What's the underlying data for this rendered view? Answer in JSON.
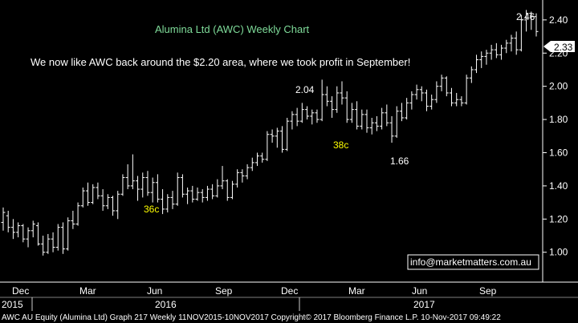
{
  "chart_data": {
    "type": "ohlc",
    "title": "Alumina Ltd (AWC) Weekly Chart",
    "commentary": "We now like AWC back around the $2.20 area, where we took profit in September!",
    "ylim": [
      0.82,
      2.52
    ],
    "y_ticks": [
      1.0,
      1.2,
      1.4,
      1.6,
      1.8,
      2.0,
      2.2,
      2.4
    ],
    "y_tick_labels": [
      "1.00",
      "1.20",
      "1.40",
      "1.60",
      "1.80",
      "2.00",
      "2.20",
      "2.40"
    ],
    "last_price": 2.33,
    "last_price_label": "2.33",
    "x_month_labels": [
      "Dec",
      "Mar",
      "Jun",
      "Sep",
      "Dec",
      "Mar",
      "Jun",
      "Sep"
    ],
    "x_year_labels": [
      "2015",
      "2016",
      "2017"
    ],
    "annotations": [
      {
        "text": "2.46",
        "color": "#ffffff"
      },
      {
        "text": "2.04",
        "color": "#ffffff"
      },
      {
        "text": "38c",
        "color": "#ffff00"
      },
      {
        "text": "1.66",
        "color": "#ffffff"
      },
      {
        "text": "36c",
        "color": "#ffff00"
      }
    ],
    "bars": [
      {
        "o": 1.18,
        "h": 1.27,
        "l": 1.13,
        "c": 1.24
      },
      {
        "o": 1.22,
        "h": 1.25,
        "l": 1.12,
        "c": 1.15
      },
      {
        "o": 1.15,
        "h": 1.2,
        "l": 1.08,
        "c": 1.12
      },
      {
        "o": 1.12,
        "h": 1.18,
        "l": 1.09,
        "c": 1.16
      },
      {
        "o": 1.16,
        "h": 1.17,
        "l": 1.06,
        "c": 1.08
      },
      {
        "o": 1.08,
        "h": 1.15,
        "l": 1.03,
        "c": 1.13
      },
      {
        "o": 1.13,
        "h": 1.19,
        "l": 1.09,
        "c": 1.17
      },
      {
        "o": 1.16,
        "h": 1.18,
        "l": 1.04,
        "c": 1.05
      },
      {
        "o": 1.05,
        "h": 1.1,
        "l": 0.98,
        "c": 1.0
      },
      {
        "o": 1.0,
        "h": 1.11,
        "l": 0.99,
        "c": 1.08
      },
      {
        "o": 1.08,
        "h": 1.12,
        "l": 1.0,
        "c": 1.03
      },
      {
        "o": 1.03,
        "h": 1.17,
        "l": 1.01,
        "c": 1.15
      },
      {
        "o": 1.15,
        "h": 1.18,
        "l": 0.99,
        "c": 1.02
      },
      {
        "o": 1.02,
        "h": 1.21,
        "l": 1.01,
        "c": 1.19
      },
      {
        "o": 1.19,
        "h": 1.25,
        "l": 1.14,
        "c": 1.17
      },
      {
        "o": 1.17,
        "h": 1.3,
        "l": 1.16,
        "c": 1.28
      },
      {
        "o": 1.28,
        "h": 1.39,
        "l": 1.27,
        "c": 1.37
      },
      {
        "o": 1.37,
        "h": 1.42,
        "l": 1.28,
        "c": 1.3
      },
      {
        "o": 1.3,
        "h": 1.41,
        "l": 1.29,
        "c": 1.39
      },
      {
        "o": 1.39,
        "h": 1.42,
        "l": 1.32,
        "c": 1.34
      },
      {
        "o": 1.34,
        "h": 1.38,
        "l": 1.25,
        "c": 1.28
      },
      {
        "o": 1.28,
        "h": 1.35,
        "l": 1.26,
        "c": 1.33
      },
      {
        "o": 1.33,
        "h": 1.34,
        "l": 1.22,
        "c": 1.25
      },
      {
        "o": 1.25,
        "h": 1.37,
        "l": 1.2,
        "c": 1.35
      },
      {
        "o": 1.35,
        "h": 1.47,
        "l": 1.34,
        "c": 1.45
      },
      {
        "o": 1.45,
        "h": 1.53,
        "l": 1.38,
        "c": 1.4
      },
      {
        "o": 1.4,
        "h": 1.59,
        "l": 1.38,
        "c": 1.43
      },
      {
        "o": 1.43,
        "h": 1.46,
        "l": 1.31,
        "c": 1.38
      },
      {
        "o": 1.38,
        "h": 1.48,
        "l": 1.33,
        "c": 1.45
      },
      {
        "o": 1.45,
        "h": 1.49,
        "l": 1.34,
        "c": 1.36
      },
      {
        "o": 1.36,
        "h": 1.45,
        "l": 1.3,
        "c": 1.42
      },
      {
        "o": 1.42,
        "h": 1.47,
        "l": 1.3,
        "c": 1.32
      },
      {
        "o": 1.32,
        "h": 1.38,
        "l": 1.23,
        "c": 1.26
      },
      {
        "o": 1.26,
        "h": 1.35,
        "l": 1.24,
        "c": 1.33
      },
      {
        "o": 1.33,
        "h": 1.37,
        "l": 1.26,
        "c": 1.29
      },
      {
        "o": 1.29,
        "h": 1.48,
        "l": 1.28,
        "c": 1.45
      },
      {
        "o": 1.45,
        "h": 1.47,
        "l": 1.33,
        "c": 1.35
      },
      {
        "o": 1.35,
        "h": 1.39,
        "l": 1.29,
        "c": 1.37
      },
      {
        "o": 1.37,
        "h": 1.4,
        "l": 1.3,
        "c": 1.32
      },
      {
        "o": 1.32,
        "h": 1.39,
        "l": 1.31,
        "c": 1.36
      },
      {
        "o": 1.36,
        "h": 1.38,
        "l": 1.3,
        "c": 1.33
      },
      {
        "o": 1.33,
        "h": 1.4,
        "l": 1.31,
        "c": 1.38
      },
      {
        "o": 1.38,
        "h": 1.41,
        "l": 1.32,
        "c": 1.34
      },
      {
        "o": 1.34,
        "h": 1.44,
        "l": 1.33,
        "c": 1.4
      },
      {
        "o": 1.4,
        "h": 1.52,
        "l": 1.38,
        "c": 1.43
      },
      {
        "o": 1.43,
        "h": 1.44,
        "l": 1.31,
        "c": 1.33
      },
      {
        "o": 1.33,
        "h": 1.43,
        "l": 1.32,
        "c": 1.41
      },
      {
        "o": 1.41,
        "h": 1.5,
        "l": 1.39,
        "c": 1.48
      },
      {
        "o": 1.48,
        "h": 1.5,
        "l": 1.42,
        "c": 1.46
      },
      {
        "o": 1.46,
        "h": 1.53,
        "l": 1.44,
        "c": 1.51
      },
      {
        "o": 1.51,
        "h": 1.57,
        "l": 1.49,
        "c": 1.54
      },
      {
        "o": 1.54,
        "h": 1.6,
        "l": 1.52,
        "c": 1.58
      },
      {
        "o": 1.58,
        "h": 1.6,
        "l": 1.54,
        "c": 1.56
      },
      {
        "o": 1.56,
        "h": 1.73,
        "l": 1.55,
        "c": 1.71
      },
      {
        "o": 1.71,
        "h": 1.74,
        "l": 1.66,
        "c": 1.7
      },
      {
        "o": 1.7,
        "h": 1.75,
        "l": 1.63,
        "c": 1.73
      },
      {
        "o": 1.73,
        "h": 1.76,
        "l": 1.6,
        "c": 1.62
      },
      {
        "o": 1.62,
        "h": 1.81,
        "l": 1.61,
        "c": 1.79
      },
      {
        "o": 1.79,
        "h": 1.85,
        "l": 1.74,
        "c": 1.83
      },
      {
        "o": 1.83,
        "h": 1.87,
        "l": 1.76,
        "c": 1.79
      },
      {
        "o": 1.79,
        "h": 1.9,
        "l": 1.78,
        "c": 1.86
      },
      {
        "o": 1.86,
        "h": 1.88,
        "l": 1.8,
        "c": 1.82
      },
      {
        "o": 1.82,
        "h": 1.86,
        "l": 1.77,
        "c": 1.84
      },
      {
        "o": 1.84,
        "h": 1.86,
        "l": 1.78,
        "c": 1.8
      },
      {
        "o": 1.8,
        "h": 2.04,
        "l": 1.79,
        "c": 1.95
      },
      {
        "o": 1.95,
        "h": 2.0,
        "l": 1.88,
        "c": 1.91
      },
      {
        "o": 1.91,
        "h": 1.94,
        "l": 1.81,
        "c": 1.86
      },
      {
        "o": 1.86,
        "h": 2.0,
        "l": 1.84,
        "c": 1.96
      },
      {
        "o": 1.96,
        "h": 2.03,
        "l": 1.89,
        "c": 1.93
      },
      {
        "o": 1.93,
        "h": 1.97,
        "l": 1.78,
        "c": 1.8
      },
      {
        "o": 1.8,
        "h": 1.9,
        "l": 1.78,
        "c": 1.86
      },
      {
        "o": 1.86,
        "h": 1.91,
        "l": 1.74,
        "c": 1.76
      },
      {
        "o": 1.76,
        "h": 1.86,
        "l": 1.74,
        "c": 1.83
      },
      {
        "o": 1.83,
        "h": 1.86,
        "l": 1.72,
        "c": 1.75
      },
      {
        "o": 1.75,
        "h": 1.81,
        "l": 1.71,
        "c": 1.78
      },
      {
        "o": 1.78,
        "h": 1.82,
        "l": 1.73,
        "c": 1.76
      },
      {
        "o": 1.76,
        "h": 1.87,
        "l": 1.74,
        "c": 1.84
      },
      {
        "o": 1.84,
        "h": 1.89,
        "l": 1.76,
        "c": 1.78
      },
      {
        "o": 1.78,
        "h": 1.82,
        "l": 1.66,
        "c": 1.7
      },
      {
        "o": 1.7,
        "h": 1.88,
        "l": 1.69,
        "c": 1.85
      },
      {
        "o": 1.85,
        "h": 1.9,
        "l": 1.79,
        "c": 1.81
      },
      {
        "o": 1.81,
        "h": 1.93,
        "l": 1.8,
        "c": 1.9
      },
      {
        "o": 1.9,
        "h": 1.97,
        "l": 1.86,
        "c": 1.95
      },
      {
        "o": 1.95,
        "h": 2.01,
        "l": 1.92,
        "c": 1.98
      },
      {
        "o": 1.98,
        "h": 2.0,
        "l": 1.91,
        "c": 1.96
      },
      {
        "o": 1.96,
        "h": 1.98,
        "l": 1.85,
        "c": 1.88
      },
      {
        "o": 1.88,
        "h": 1.95,
        "l": 1.86,
        "c": 1.92
      },
      {
        "o": 1.92,
        "h": 2.03,
        "l": 1.9,
        "c": 2.0
      },
      {
        "o": 2.0,
        "h": 2.07,
        "l": 1.97,
        "c": 2.05
      },
      {
        "o": 2.05,
        "h": 2.06,
        "l": 1.94,
        "c": 1.96
      },
      {
        "o": 1.96,
        "h": 1.99,
        "l": 1.88,
        "c": 1.9
      },
      {
        "o": 1.9,
        "h": 1.96,
        "l": 1.88,
        "c": 1.92
      },
      {
        "o": 1.92,
        "h": 1.94,
        "l": 1.88,
        "c": 1.9
      },
      {
        "o": 1.9,
        "h": 2.07,
        "l": 1.89,
        "c": 2.05
      },
      {
        "o": 2.05,
        "h": 2.12,
        "l": 2.02,
        "c": 2.1
      },
      {
        "o": 2.1,
        "h": 2.19,
        "l": 2.08,
        "c": 2.16
      },
      {
        "o": 2.16,
        "h": 2.21,
        "l": 2.11,
        "c": 2.18
      },
      {
        "o": 2.18,
        "h": 2.22,
        "l": 2.13,
        "c": 2.2
      },
      {
        "o": 2.2,
        "h": 2.25,
        "l": 2.16,
        "c": 2.22
      },
      {
        "o": 2.22,
        "h": 2.26,
        "l": 2.17,
        "c": 2.19
      },
      {
        "o": 2.19,
        "h": 2.25,
        "l": 2.16,
        "c": 2.23
      },
      {
        "o": 2.23,
        "h": 2.28,
        "l": 2.2,
        "c": 2.26
      },
      {
        "o": 2.26,
        "h": 2.31,
        "l": 2.21,
        "c": 2.29
      },
      {
        "o": 2.29,
        "h": 2.33,
        "l": 2.19,
        "c": 2.22
      },
      {
        "o": 2.22,
        "h": 2.43,
        "l": 2.21,
        "c": 2.4
      },
      {
        "o": 2.4,
        "h": 2.46,
        "l": 2.33,
        "c": 2.44
      },
      {
        "o": 2.44,
        "h": 2.45,
        "l": 2.34,
        "c": 2.42
      },
      {
        "o": 2.42,
        "h": 2.44,
        "l": 2.3,
        "c": 2.33
      }
    ]
  },
  "footer_text": "AWC AU Equity (Alumina Ltd) Graph 217  Weekly 11NOV2015-10NOV2017   Copyright© 2017 Bloomberg Finance L.P.    10-Nov-2017 09:49:22",
  "email": "info@marketmatters.com.au",
  "colors": {
    "background": "#000000",
    "bar": "#ffffff",
    "title": "#7fdc9a",
    "highlight": "#ffff00",
    "price_tag_bg": "#ffffff",
    "price_tag_text": "#000000"
  }
}
